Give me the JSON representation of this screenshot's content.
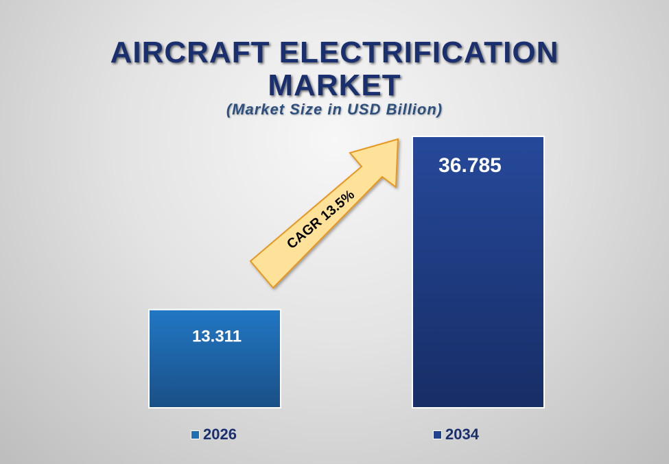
{
  "colors": {
    "bar_2026": "#1f6fb5",
    "bar_2034": "#22428e",
    "title": "#1a2f6e",
    "arrow": "#ffe29a"
  },
  "chart_data": {
    "type": "bar",
    "title_lines": [
      "AIRCRAFT ELECTRIFICATION",
      "MARKET"
    ],
    "subtitle": "(Market Size in USD Billion)",
    "categories": [
      "2026",
      "2034"
    ],
    "values": [
      13.311,
      36.785
    ],
    "value_labels": [
      "13.311",
      "36.785"
    ],
    "ylim": [
      0,
      36.785
    ],
    "grid": false,
    "legend": "bottom",
    "annotation": "CAGR 13.5%"
  }
}
